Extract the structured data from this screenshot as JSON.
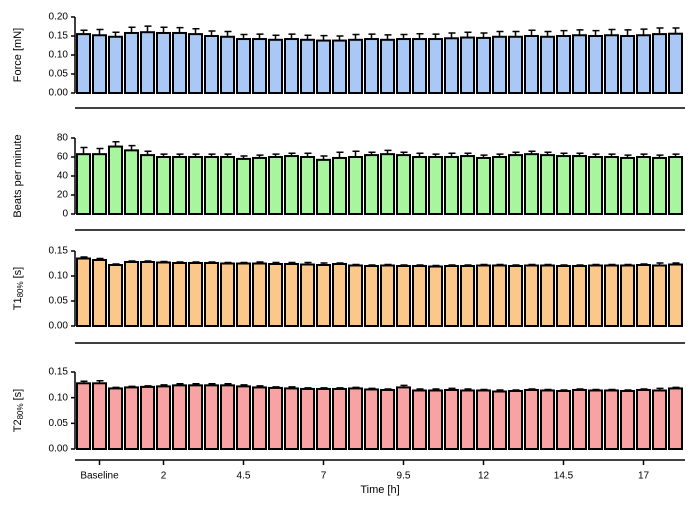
{
  "chart_data": [
    {
      "type": "bar",
      "y_label": "Force [mN]",
      "color": "#a9c8f5",
      "ylim": [
        0,
        0.2
      ],
      "yticks": [
        {
          "value": 0,
          "label": "0.00"
        },
        {
          "value": 0.05,
          "label": "0.05"
        },
        {
          "value": 0.1,
          "label": "0.10"
        },
        {
          "value": 0.15,
          "label": "0.15"
        },
        {
          "value": 0.2,
          "label": "0.20"
        }
      ],
      "values": [
        0.155,
        0.152,
        0.148,
        0.158,
        0.16,
        0.158,
        0.158,
        0.155,
        0.15,
        0.148,
        0.142,
        0.142,
        0.14,
        0.142,
        0.14,
        0.138,
        0.138,
        0.14,
        0.142,
        0.14,
        0.142,
        0.142,
        0.142,
        0.144,
        0.146,
        0.145,
        0.148,
        0.148,
        0.15,
        0.148,
        0.15,
        0.152,
        0.15,
        0.152,
        0.15,
        0.152,
        0.155,
        0.156
      ],
      "errors": [
        0.01,
        0.015,
        0.012,
        0.015,
        0.016,
        0.015,
        0.014,
        0.014,
        0.013,
        0.014,
        0.012,
        0.013,
        0.012,
        0.013,
        0.012,
        0.013,
        0.012,
        0.014,
        0.013,
        0.013,
        0.012,
        0.014,
        0.013,
        0.014,
        0.014,
        0.013,
        0.014,
        0.014,
        0.015,
        0.014,
        0.014,
        0.014,
        0.014,
        0.015,
        0.016,
        0.016,
        0.016,
        0.015
      ]
    },
    {
      "type": "bar",
      "y_label": "Beats per minute",
      "color": "#a8f5a0",
      "ylim": [
        0,
        80
      ],
      "yticks": [
        0,
        20,
        40,
        60,
        80
      ],
      "values": [
        63,
        63,
        71,
        67,
        62,
        60,
        60,
        60,
        60,
        60,
        58,
        59,
        60,
        61,
        60,
        57,
        59,
        60,
        62,
        63,
        62,
        60,
        60,
        60,
        61,
        59,
        60,
        62,
        63,
        62,
        61,
        61,
        60,
        60,
        59,
        60,
        59,
        60
      ],
      "errors": [
        7,
        6,
        5,
        5,
        4,
        3,
        3,
        3,
        3,
        3,
        3,
        3,
        3,
        3,
        4,
        4,
        6,
        6,
        3,
        4,
        3,
        4,
        3,
        4,
        3,
        3,
        3,
        3,
        3,
        3,
        3,
        3,
        3,
        3,
        3,
        3,
        3,
        3
      ]
    },
    {
      "type": "bar",
      "y_label": "T1",
      "y_label_sub": "80%",
      "y_label_unit": "[s]",
      "color": "#fbc88a",
      "ylim": [
        0,
        0.15
      ],
      "yticks": [
        {
          "value": 0,
          "label": "0.00"
        },
        {
          "value": 0.05,
          "label": "0.05"
        },
        {
          "value": 0.1,
          "label": "0.10"
        },
        {
          "value": 0.15,
          "label": "0.15"
        }
      ],
      "values": [
        0.135,
        0.132,
        0.122,
        0.128,
        0.128,
        0.127,
        0.126,
        0.126,
        0.126,
        0.125,
        0.125,
        0.125,
        0.124,
        0.124,
        0.123,
        0.122,
        0.124,
        0.121,
        0.12,
        0.121,
        0.12,
        0.12,
        0.119,
        0.12,
        0.12,
        0.121,
        0.121,
        0.12,
        0.121,
        0.121,
        0.12,
        0.12,
        0.121,
        0.121,
        0.121,
        0.122,
        0.121,
        0.123
      ],
      "errors": [
        0.003,
        0.003,
        0.002,
        0.002,
        0.002,
        0.002,
        0.002,
        0.002,
        0.002,
        0.002,
        0.002,
        0.003,
        0.003,
        0.003,
        0.004,
        0.004,
        0.002,
        0.002,
        0.002,
        0.002,
        0.002,
        0.002,
        0.002,
        0.002,
        0.002,
        0.002,
        0.002,
        0.002,
        0.002,
        0.002,
        0.002,
        0.002,
        0.002,
        0.002,
        0.002,
        0.002,
        0.005,
        0.003
      ]
    },
    {
      "type": "bar",
      "y_label": "T2",
      "y_label_sub": "80%",
      "y_label_unit": "[s]",
      "color": "#f7a3a3",
      "ylim": [
        0,
        0.15
      ],
      "yticks": [
        {
          "value": 0,
          "label": "0.00"
        },
        {
          "value": 0.05,
          "label": "0.05"
        },
        {
          "value": 0.1,
          "label": "0.10"
        },
        {
          "value": 0.15,
          "label": "0.15"
        }
      ],
      "values": [
        0.128,
        0.128,
        0.118,
        0.12,
        0.121,
        0.122,
        0.124,
        0.124,
        0.124,
        0.124,
        0.122,
        0.12,
        0.119,
        0.118,
        0.117,
        0.117,
        0.117,
        0.118,
        0.116,
        0.115,
        0.12,
        0.114,
        0.114,
        0.115,
        0.114,
        0.114,
        0.112,
        0.113,
        0.115,
        0.114,
        0.113,
        0.115,
        0.114,
        0.114,
        0.113,
        0.115,
        0.114,
        0.118
      ],
      "errors": [
        0.004,
        0.005,
        0.002,
        0.002,
        0.002,
        0.003,
        0.003,
        0.003,
        0.003,
        0.003,
        0.003,
        0.003,
        0.002,
        0.003,
        0.002,
        0.002,
        0.002,
        0.002,
        0.002,
        0.002,
        0.004,
        0.003,
        0.003,
        0.003,
        0.003,
        0.002,
        0.003,
        0.002,
        0.002,
        0.002,
        0.002,
        0.002,
        0.002,
        0.002,
        0.002,
        0.002,
        0.004,
        0.002
      ],
      "categories": [
        null,
        "Baseline",
        null,
        null,
        null,
        "2",
        null,
        null,
        null,
        null,
        "4.5",
        null,
        null,
        null,
        null,
        "7",
        null,
        null,
        null,
        null,
        "9.5",
        null,
        null,
        null,
        null,
        "12",
        null,
        null,
        null,
        null,
        "14.5",
        null,
        null,
        null,
        null,
        "17",
        null,
        null
      ],
      "x_label": "Time [h]"
    }
  ]
}
